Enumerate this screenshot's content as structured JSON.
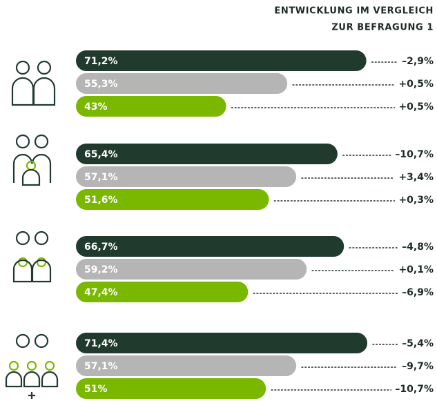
{
  "chart_data": {
    "type": "bar",
    "title_lines": [
      "ENTWICKLUNG IM VERGLEICH",
      "ZUR BEFRAGUNG 1"
    ],
    "categories": [
      null,
      null,
      null,
      null
    ],
    "series": [
      {
        "color": "#213a2e",
        "values": [
          71.2,
          65.4,
          66.7,
          71.4
        ],
        "value_labels": [
          "71,2%",
          "65,4%",
          "66,7%",
          "71,4%"
        ],
        "change_labels": [
          "–2,9%",
          "–10,7%",
          "–4,8%",
          "–5,4%"
        ]
      },
      {
        "color": "#b5b5b5",
        "values": [
          55.3,
          57.1,
          59.2,
          57.1
        ],
        "value_labels": [
          "55,3%",
          "57,1%",
          "59,2%",
          "57,1%"
        ],
        "change_labels": [
          "+0,5%",
          "+3,4%",
          "+0,1%",
          "–9,7%"
        ]
      },
      {
        "color": "#7ab800",
        "values": [
          43,
          51.6,
          47.4,
          51
        ],
        "value_labels": [
          "43%",
          "51,6%",
          "47,4%",
          "51%"
        ],
        "change_labels": [
          "+0,5%",
          "+0,3%",
          "–6,9%",
          "–10,7%"
        ]
      }
    ]
  }
}
